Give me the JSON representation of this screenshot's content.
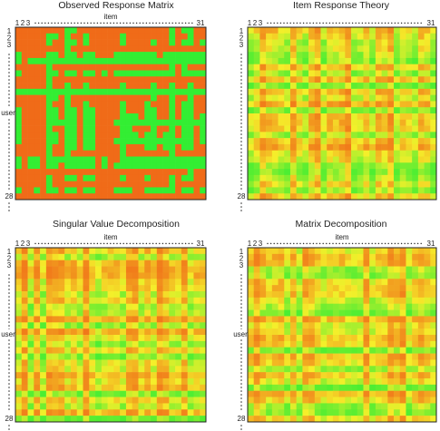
{
  "chart_data": [
    {
      "type": "heatmap",
      "title": "Observed Response Matrix",
      "xlabel": "item",
      "ylabel": "user",
      "x_ticks": [
        "1",
        "2",
        "3",
        "31"
      ],
      "y_ticks": [
        "1",
        "2",
        "3",
        "28"
      ],
      "value_range": [
        0,
        1
      ],
      "seed": 11,
      "binary": true,
      "colors": {
        "low": "#f06b18",
        "high": "#33ee33"
      }
    },
    {
      "type": "heatmap",
      "title": "Item Response Theory",
      "xlabel": "",
      "ylabel": "",
      "x_ticks": [
        "1",
        "2",
        "3",
        "31"
      ],
      "y_ticks": [
        "1",
        "2",
        "3",
        "28"
      ],
      "value_range": [
        0,
        1
      ],
      "seed": 23,
      "binary": false,
      "colors": {
        "low": "#f06b18",
        "mid": "#f5ef2a",
        "high": "#33ee33"
      }
    },
    {
      "type": "heatmap",
      "title": "Singular Value Decomposition",
      "xlabel": "item",
      "ylabel": "user",
      "x_ticks": [
        "1",
        "2",
        "3",
        "31"
      ],
      "y_ticks": [
        "1",
        "2",
        "3",
        "28"
      ],
      "value_range": [
        0,
        1
      ],
      "seed": 37,
      "binary": false,
      "colors": {
        "low": "#f06b18",
        "mid": "#f5ef2a",
        "high": "#33ee33"
      }
    },
    {
      "type": "heatmap",
      "title": "Matrix Decomposition",
      "xlabel": "item",
      "ylabel": "user",
      "x_ticks": [
        "1",
        "2",
        "3",
        "31"
      ],
      "y_ticks": [
        "1",
        "2",
        "3",
        "28"
      ],
      "value_range": [
        0,
        1
      ],
      "seed": 53,
      "binary": false,
      "colors": {
        "low": "#f06b18",
        "mid": "#f5ef2a",
        "high": "#33ee33"
      }
    }
  ]
}
